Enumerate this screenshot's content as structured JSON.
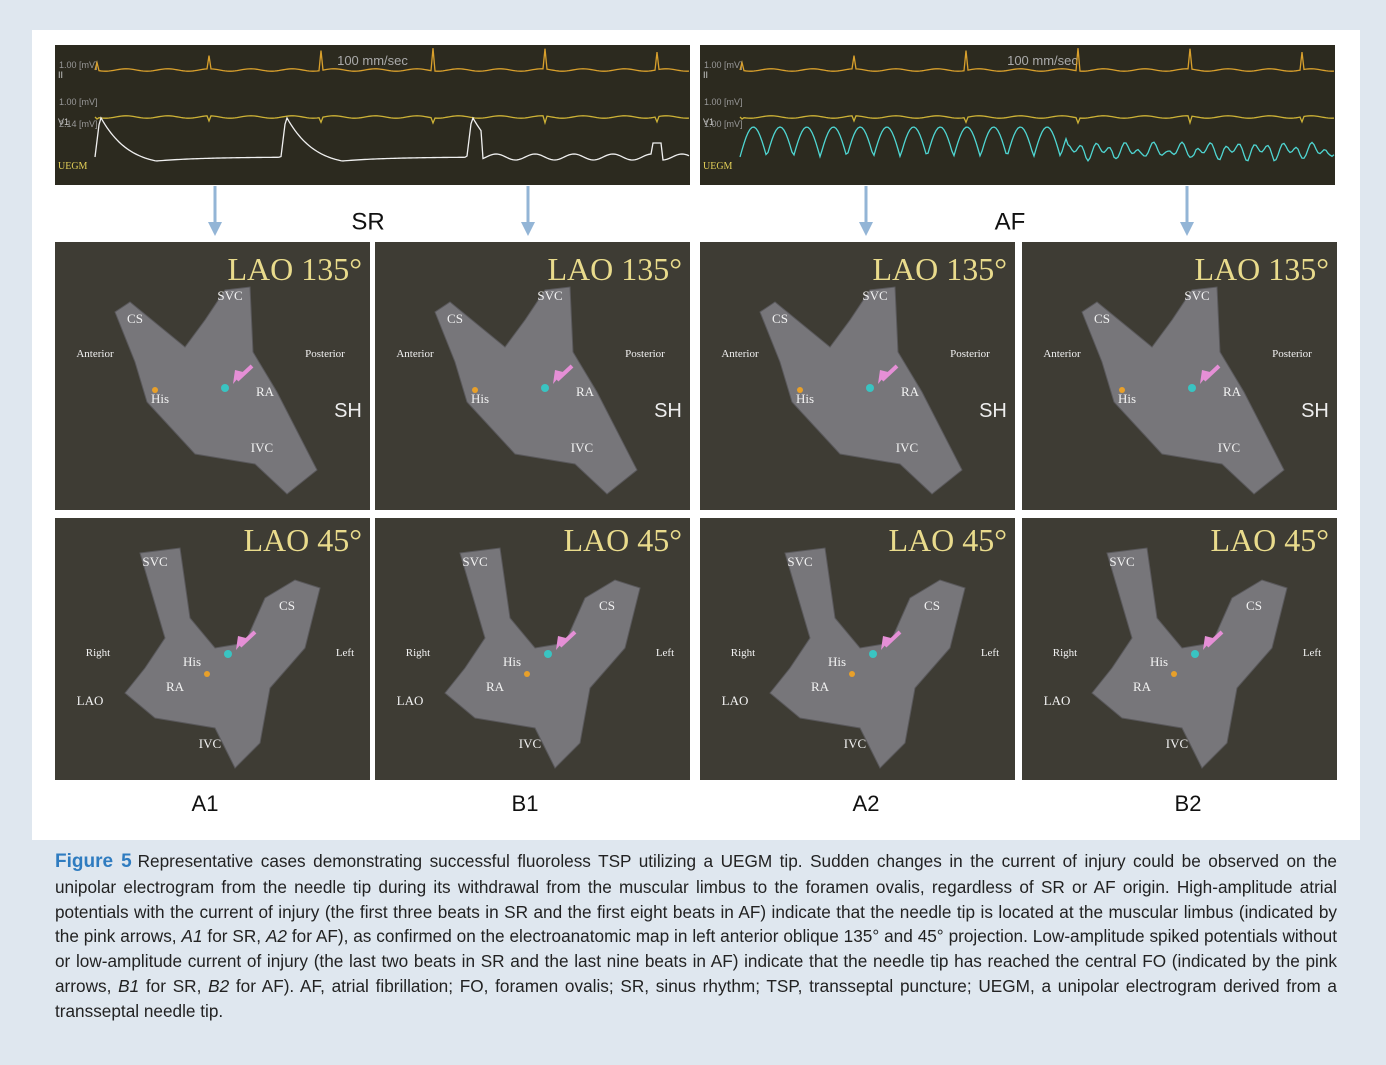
{
  "ecg": [
    {
      "speed": "100 mm/sec",
      "rhythm": "SR",
      "channels": [
        {
          "scale": "1.00 [mV]",
          "lead": "II"
        },
        {
          "scale": "1.00 [mV]",
          "lead": "V1"
        },
        {
          "scale": "2.14 [mV]",
          "lead": "UEGM"
        }
      ]
    },
    {
      "speed": "100 mm/sec",
      "rhythm": "AF",
      "channels": [
        {
          "scale": "1.00 [mV]",
          "lead": "II"
        },
        {
          "scale": "1.00 [mV]",
          "lead": "V1"
        },
        {
          "scale": "1.00 [mV]",
          "lead": "UEGM"
        }
      ]
    }
  ],
  "columns": [
    {
      "label": "A1",
      "views": [
        {
          "view": "LAO 135°",
          "structures": [
            "SVC",
            "CS",
            "Anterior",
            "Posterior",
            "His",
            "RA",
            "IVC",
            "SH"
          ]
        },
        {
          "view": "LAO 45°",
          "structures": [
            "SVC",
            "CS",
            "Right",
            "Left",
            "His",
            "RA",
            "IVC",
            "LAO"
          ]
        }
      ]
    },
    {
      "label": "B1",
      "views": [
        {
          "view": "LAO 135°",
          "structures": [
            "SVC",
            "CS",
            "Anterior",
            "Posterior",
            "His",
            "RA",
            "IVC",
            "SH"
          ]
        },
        {
          "view": "LAO 45°",
          "structures": [
            "SVC",
            "CS",
            "Right",
            "Left",
            "His",
            "RA",
            "IVC",
            "LAO"
          ]
        }
      ]
    },
    {
      "label": "A2",
      "views": [
        {
          "view": "LAO 135°",
          "structures": [
            "SVC",
            "CS",
            "Anterior",
            "Posterior",
            "His",
            "RA",
            "IVC",
            "SH"
          ]
        },
        {
          "view": "LAO 45°",
          "structures": [
            "SVC",
            "CS",
            "Right",
            "Left",
            "His",
            "RA",
            "IVC",
            "LAO"
          ]
        }
      ]
    },
    {
      "label": "B2",
      "views": [
        {
          "view": "LAO 135°",
          "structures": [
            "SVC",
            "CS",
            "Anterior",
            "Posterior",
            "His",
            "RA",
            "IVC",
            "SH"
          ]
        },
        {
          "view": "LAO 45°",
          "structures": [
            "SVC",
            "CS",
            "Right",
            "Left",
            "His",
            "RA",
            "IVC",
            "LAO"
          ]
        }
      ]
    }
  ],
  "caption": {
    "label": "Figure 5",
    "segments": [
      "Representative cases demonstrating successful fluoroless TSP utilizing a UEGM tip. Sudden changes in the current of injury could be observed on the unipolar electrogram from the needle tip during its withdrawal from the muscular limbus to the foramen ovalis, regardless of SR or AF origin. High-amplitude atrial potentials with the current of injury (the first three beats in SR and the first eight beats in AF) indicate that the needle tip is located at the muscular limbus (indicated by the pink arrows, ",
      "A1",
      " for SR, ",
      "A2",
      " for AF), as confirmed on the electroanatomic map in left anterior oblique 135° and 45° projection. Low-amplitude spiked potentials without or low-amplitude current of injury (the last two beats in SR and the last nine beats in AF) indicate that the needle tip has reached the central FO (indicated by the pink arrows, ",
      "B1",
      " for SR, ",
      "B2",
      " for AF). AF, atrial fibrillation; FO, foramen ovalis; SR, sinus rhythm; TSP, transseptal puncture; UEGM, a unipolar electrogram derived from a transseptal needle tip."
    ]
  }
}
